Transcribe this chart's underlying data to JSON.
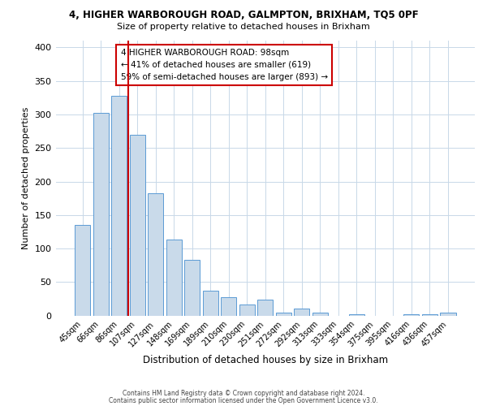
{
  "title1": "4, HIGHER WARBOROUGH ROAD, GALMPTON, BRIXHAM, TQ5 0PF",
  "title2": "Size of property relative to detached houses in Brixham",
  "xlabel": "Distribution of detached houses by size in Brixham",
  "ylabel": "Number of detached properties",
  "bar_labels": [
    "45sqm",
    "66sqm",
    "86sqm",
    "107sqm",
    "127sqm",
    "148sqm",
    "169sqm",
    "189sqm",
    "210sqm",
    "230sqm",
    "251sqm",
    "272sqm",
    "292sqm",
    "313sqm",
    "333sqm",
    "354sqm",
    "375sqm",
    "395sqm",
    "416sqm",
    "436sqm",
    "457sqm"
  ],
  "bar_values": [
    135,
    302,
    328,
    270,
    182,
    113,
    83,
    37,
    27,
    17,
    24,
    5,
    11,
    5,
    0,
    2,
    0,
    0,
    2,
    2,
    4
  ],
  "bar_color": "#c9daea",
  "bar_edge_color": "#5b9bd5",
  "ylim": [
    0,
    410
  ],
  "yticks": [
    0,
    50,
    100,
    150,
    200,
    250,
    300,
    350,
    400
  ],
  "vline_x": 2.5,
  "vline_color": "#cc0000",
  "annotation_title": "4 HIGHER WARBOROUGH ROAD: 98sqm",
  "annotation_line1": "← 41% of detached houses are smaller (619)",
  "annotation_line2": "59% of semi-detached houses are larger (893) →",
  "annotation_box_edge": "#cc0000",
  "footer1": "Contains HM Land Registry data © Crown copyright and database right 2024.",
  "footer2": "Contains public sector information licensed under the Open Government Licence v3.0.",
  "bg_color": "#ffffff",
  "grid_color": "#c8d8e8"
}
